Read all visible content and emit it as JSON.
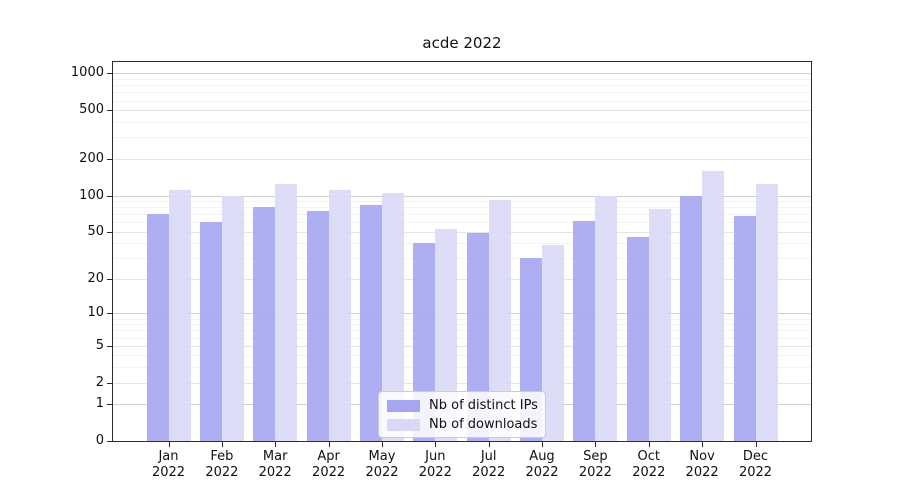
{
  "title": "acde 2022",
  "chart_data": {
    "type": "bar",
    "title": "acde 2022",
    "categories": [
      "Jan 2022",
      "Feb 2022",
      "Mar 2022",
      "Apr 2022",
      "May 2022",
      "Jun 2022",
      "Jul 2022",
      "Aug 2022",
      "Sep 2022",
      "Oct 2022",
      "Nov 2022",
      "Dec 2022"
    ],
    "series": [
      {
        "name": "Nb of distinct IPs",
        "color": "#a5a5f1",
        "values": [
          70,
          60,
          80,
          75,
          83,
          40,
          49,
          30,
          62,
          45,
          100,
          68
        ]
      },
      {
        "name": "Nb of downloads",
        "color": "#d9d9f7",
        "values": [
          110,
          100,
          124,
          110,
          105,
          53,
          92,
          39,
          100,
          78,
          160,
          124
        ]
      }
    ],
    "yscale": "log1p",
    "yticks": [
      0,
      1,
      2,
      5,
      10,
      20,
      50,
      100,
      200,
      500,
      1000
    ],
    "ytick_decades": [
      1,
      10,
      100,
      1000
    ],
    "yminor_multiples": [
      3,
      4,
      6,
      7,
      8,
      9
    ],
    "ylim": [
      0,
      1240
    ],
    "xlabel": "",
    "ylabel": "",
    "grid": true,
    "legend_position": "lower center"
  }
}
